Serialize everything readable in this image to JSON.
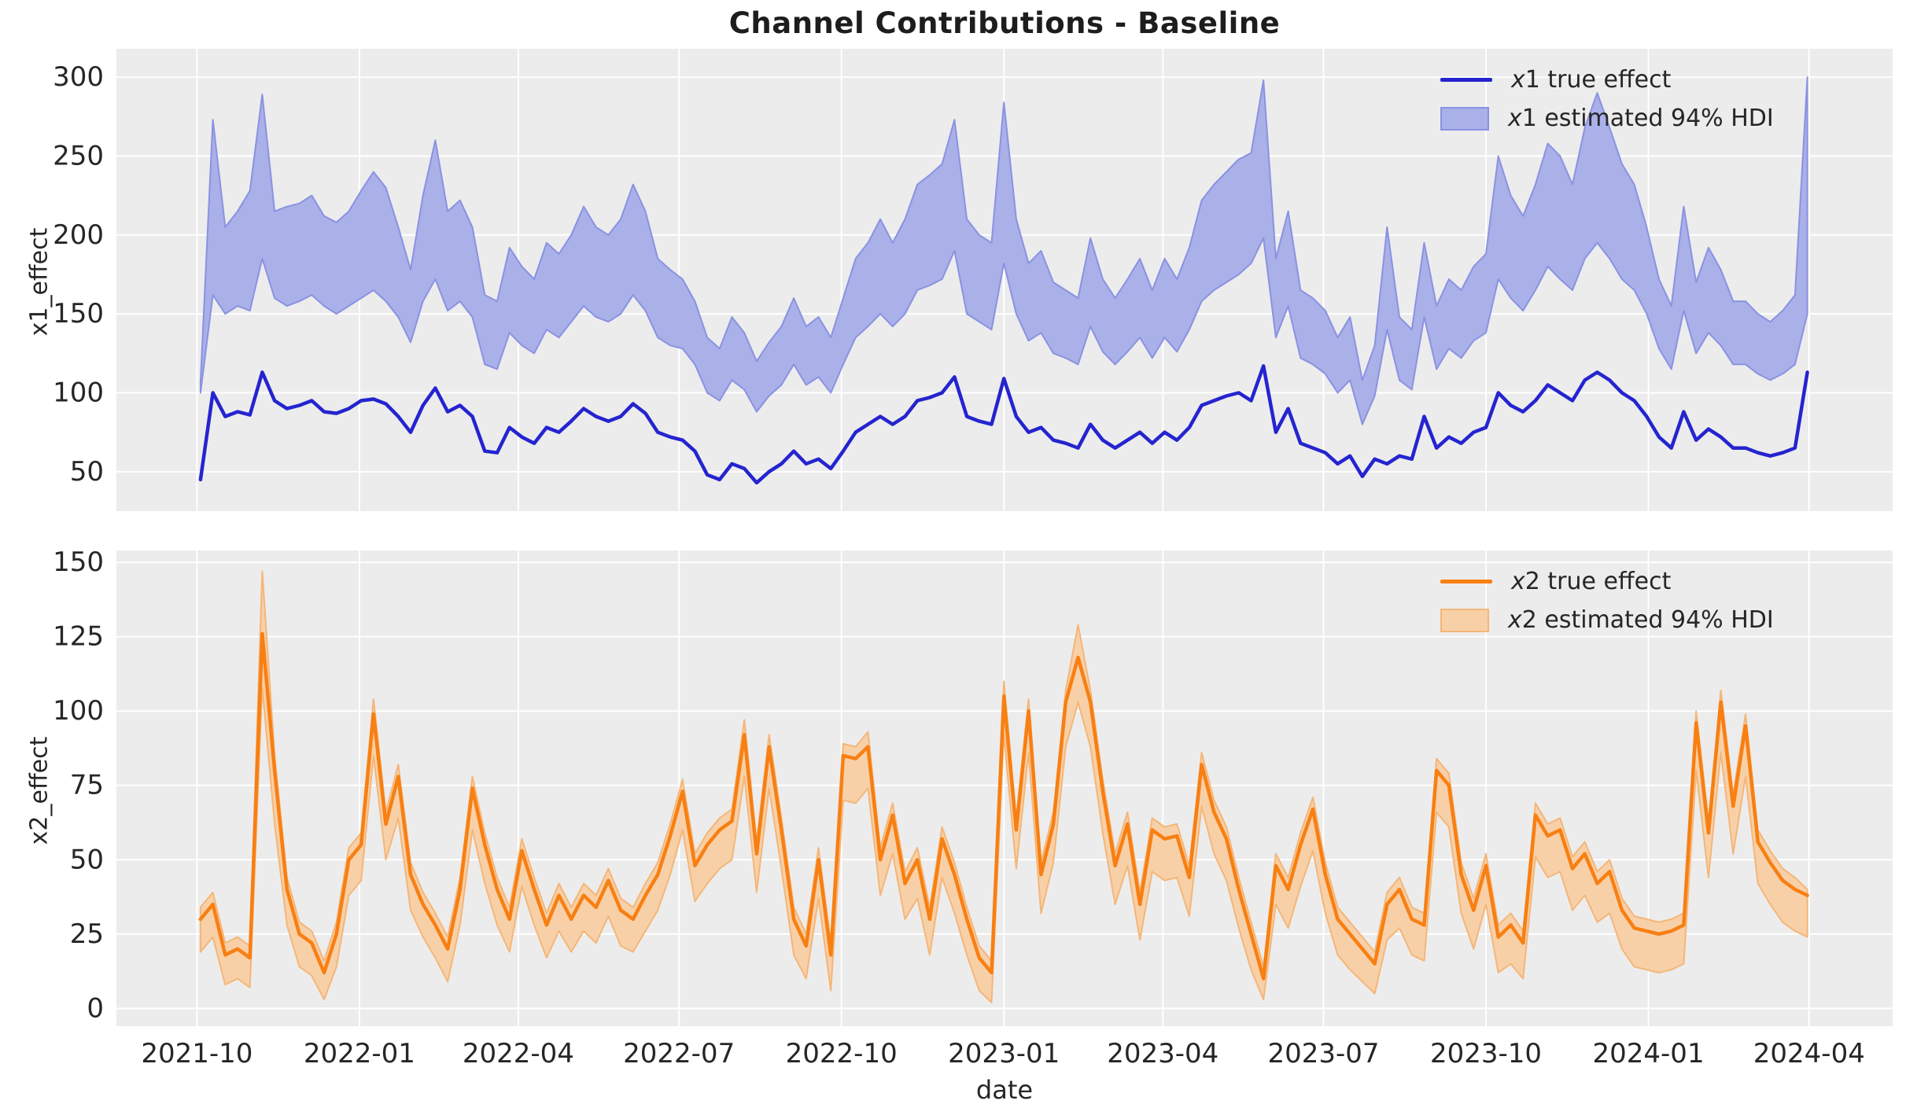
{
  "figure": {
    "title": "Channel Contributions - Baseline",
    "panel_background": "#ececec",
    "grid_color": "#ffffff",
    "text_color": "#262626"
  },
  "chart_data": [
    {
      "type": "line",
      "panel": "top",
      "ylabel": "x1_effect",
      "xlabel": "",
      "ylim": [
        25,
        318
      ],
      "yticks": [
        50,
        100,
        150,
        200,
        250,
        300
      ],
      "xlim_weeks": [
        -6.8,
        136.9
      ],
      "x_start": "2021-10-03",
      "x_step_days": 7,
      "xtick_labels": [
        "2021-10",
        "2022-01",
        "2022-04",
        "2022-07",
        "2022-10",
        "2023-01",
        "2023-04",
        "2023-07",
        "2023-10",
        "2024-01",
        "2024-04"
      ],
      "show_xtick_labels": false,
      "grid": true,
      "legend_position": "upper right",
      "line_color": "#2424d0",
      "band_fill": "#aab0e8",
      "band_edge": "#8a92e2",
      "legend": [
        {
          "label": "x1 true effect",
          "swatch": "line"
        },
        {
          "label": "x1 estimated 94% HDI",
          "swatch": "patch"
        }
      ],
      "series": [
        {
          "name": "x1 true effect",
          "role": "line",
          "values": [
            45,
            100,
            85,
            88,
            86,
            113,
            95,
            90,
            92,
            95,
            88,
            87,
            90,
            95,
            96,
            93,
            85,
            75,
            92,
            103,
            88,
            92,
            85,
            63,
            62,
            78,
            72,
            68,
            78,
            75,
            82,
            90,
            85,
            82,
            85,
            93,
            87,
            75,
            72,
            70,
            63,
            48,
            45,
            55,
            52,
            43,
            50,
            55,
            63,
            55,
            58,
            52,
            63,
            75,
            80,
            85,
            80,
            85,
            95,
            97,
            100,
            110,
            85,
            82,
            80,
            109,
            85,
            75,
            78,
            70,
            68,
            65,
            80,
            70,
            65,
            70,
            75,
            68,
            75,
            70,
            78,
            92,
            95,
            98,
            100,
            95,
            117,
            75,
            90,
            68,
            65,
            62,
            55,
            60,
            47,
            58,
            55,
            60,
            58,
            85,
            65,
            72,
            68,
            75,
            78,
            100,
            92,
            88,
            95,
            105,
            100,
            95,
            108,
            113,
            108,
            100,
            95,
            85,
            72,
            65,
            88,
            70,
            77,
            72,
            65,
            65,
            62,
            60,
            62,
            65,
            113
          ]
        },
        {
          "name": "x1 HDI low",
          "role": "band_low",
          "values": [
            100,
            162,
            150,
            155,
            152,
            185,
            160,
            155,
            158,
            162,
            155,
            150,
            155,
            160,
            165,
            158,
            148,
            132,
            158,
            172,
            152,
            158,
            148,
            118,
            115,
            138,
            130,
            125,
            140,
            135,
            145,
            155,
            148,
            145,
            150,
            162,
            152,
            135,
            130,
            128,
            118,
            100,
            95,
            108,
            102,
            88,
            98,
            105,
            118,
            105,
            110,
            100,
            118,
            135,
            142,
            150,
            142,
            150,
            165,
            168,
            172,
            190,
            150,
            145,
            140,
            182,
            150,
            133,
            138,
            125,
            122,
            118,
            142,
            126,
            118,
            126,
            135,
            122,
            135,
            126,
            140,
            158,
            165,
            170,
            175,
            182,
            198,
            135,
            155,
            122,
            118,
            112,
            100,
            108,
            80,
            98,
            140,
            108,
            102,
            148,
            115,
            128,
            122,
            133,
            138,
            172,
            160,
            152,
            165,
            180,
            172,
            165,
            185,
            195,
            185,
            172,
            165,
            150,
            128,
            115,
            152,
            125,
            138,
            130,
            118,
            118,
            112,
            108,
            112,
            118,
            150
          ]
        },
        {
          "name": "x1 HDI high",
          "role": "band_high",
          "values": [
            107,
            273,
            205,
            215,
            228,
            289,
            215,
            218,
            220,
            225,
            212,
            208,
            215,
            228,
            240,
            230,
            205,
            178,
            225,
            260,
            215,
            222,
            205,
            162,
            158,
            192,
            180,
            172,
            195,
            188,
            200,
            218,
            205,
            200,
            210,
            232,
            215,
            185,
            178,
            172,
            158,
            135,
            128,
            148,
            138,
            120,
            132,
            142,
            160,
            142,
            148,
            135,
            160,
            185,
            195,
            210,
            195,
            210,
            232,
            238,
            245,
            273,
            210,
            200,
            195,
            284,
            210,
            182,
            190,
            170,
            165,
            160,
            198,
            172,
            160,
            172,
            185,
            165,
            185,
            172,
            192,
            222,
            232,
            240,
            248,
            252,
            298,
            185,
            215,
            165,
            160,
            152,
            135,
            148,
            108,
            130,
            205,
            148,
            140,
            195,
            155,
            172,
            165,
            180,
            188,
            250,
            225,
            212,
            232,
            258,
            250,
            232,
            268,
            290,
            268,
            245,
            232,
            205,
            172,
            155,
            218,
            170,
            192,
            178,
            158,
            158,
            150,
            145,
            152,
            162,
            300
          ]
        }
      ]
    },
    {
      "type": "line",
      "panel": "bottom",
      "ylabel": "x2_effect",
      "xlabel": "date",
      "ylim": [
        -6,
        154
      ],
      "yticks": [
        0,
        25,
        50,
        75,
        100,
        125,
        150
      ],
      "xlim_weeks": [
        -6.8,
        136.9
      ],
      "x_start": "2021-10-03",
      "x_step_days": 7,
      "xtick_labels": [
        "2021-10",
        "2022-01",
        "2022-04",
        "2022-07",
        "2022-10",
        "2023-01",
        "2023-04",
        "2023-07",
        "2023-10",
        "2024-01",
        "2024-04"
      ],
      "show_xtick_labels": true,
      "grid": true,
      "legend_position": "upper right",
      "line_color": "#f87f12",
      "band_fill": "#f8d0a8",
      "band_edge": "#f4b678",
      "legend": [
        {
          "label": "x2 true effect",
          "swatch": "line"
        },
        {
          "label": "x2 estimated 94% HDI",
          "swatch": "patch"
        }
      ],
      "series": [
        {
          "name": "x2 true effect",
          "role": "line",
          "values": [
            30,
            35,
            18,
            20,
            17,
            126,
            80,
            40,
            25,
            22,
            12,
            25,
            50,
            55,
            99,
            62,
            78,
            45,
            35,
            28,
            20,
            40,
            74,
            55,
            40,
            30,
            53,
            40,
            28,
            38,
            30,
            38,
            34,
            43,
            33,
            30,
            38,
            45,
            58,
            73,
            48,
            55,
            60,
            63,
            92,
            52,
            88,
            60,
            30,
            21,
            50,
            18,
            85,
            84,
            88,
            50,
            65,
            42,
            50,
            30,
            57,
            45,
            30,
            17,
            12,
            105,
            60,
            100,
            45,
            62,
            103,
            118,
            103,
            73,
            48,
            62,
            35,
            60,
            57,
            58,
            44,
            82,
            66,
            57,
            40,
            25,
            10,
            48,
            40,
            55,
            67,
            45,
            30,
            25,
            20,
            15,
            35,
            40,
            30,
            28,
            80,
            75,
            45,
            33,
            48,
            24,
            28,
            22,
            65,
            58,
            60,
            47,
            52,
            42,
            46,
            33,
            27,
            26,
            25,
            26,
            28,
            96,
            59,
            103,
            68,
            95,
            56,
            49,
            43,
            40,
            38
          ]
        },
        {
          "name": "x2 HDI low",
          "role": "band_low",
          "values": [
            19,
            24,
            8,
            10,
            7,
            108,
            62,
            28,
            14,
            11,
            3,
            14,
            38,
            43,
            85,
            50,
            64,
            33,
            24,
            17,
            9,
            28,
            60,
            42,
            28,
            19,
            41,
            28,
            17,
            26,
            19,
            26,
            22,
            31,
            21,
            19,
            26,
            33,
            45,
            60,
            36,
            42,
            47,
            50,
            78,
            39,
            74,
            47,
            18,
            10,
            37,
            6,
            70,
            69,
            74,
            38,
            52,
            30,
            37,
            18,
            44,
            32,
            18,
            6,
            2,
            92,
            47,
            86,
            32,
            49,
            88,
            103,
            88,
            59,
            35,
            48,
            23,
            46,
            43,
            44,
            31,
            68,
            52,
            43,
            27,
            13,
            3,
            35,
            27,
            41,
            53,
            32,
            18,
            13,
            9,
            5,
            23,
            27,
            18,
            16,
            66,
            61,
            32,
            20,
            35,
            12,
            15,
            10,
            51,
            44,
            46,
            33,
            38,
            29,
            32,
            20,
            14,
            13,
            12,
            13,
            15,
            80,
            44,
            86,
            52,
            78,
            42,
            35,
            29,
            26,
            24
          ]
        },
        {
          "name": "x2 HDI high",
          "role": "band_high",
          "values": [
            34,
            39,
            22,
            24,
            21,
            147,
            85,
            44,
            29,
            26,
            16,
            29,
            54,
            59,
            104,
            66,
            82,
            49,
            39,
            32,
            24,
            44,
            78,
            59,
            44,
            34,
            57,
            44,
            32,
            42,
            34,
            42,
            38,
            47,
            37,
            34,
            42,
            49,
            62,
            77,
            52,
            59,
            64,
            67,
            97,
            56,
            92,
            64,
            34,
            25,
            54,
            22,
            89,
            88,
            93,
            54,
            69,
            46,
            54,
            34,
            61,
            49,
            34,
            21,
            16,
            110,
            64,
            104,
            49,
            66,
            107,
            129,
            107,
            77,
            52,
            66,
            39,
            64,
            61,
            62,
            48,
            86,
            70,
            61,
            44,
            29,
            14,
            52,
            44,
            59,
            71,
            49,
            34,
            29,
            24,
            19,
            39,
            44,
            34,
            32,
            84,
            79,
            49,
            37,
            52,
            28,
            32,
            26,
            69,
            62,
            64,
            51,
            56,
            46,
            50,
            37,
            31,
            30,
            29,
            30,
            32,
            100,
            63,
            107,
            72,
            99,
            60,
            53,
            47,
            44,
            40
          ]
        }
      ]
    }
  ]
}
